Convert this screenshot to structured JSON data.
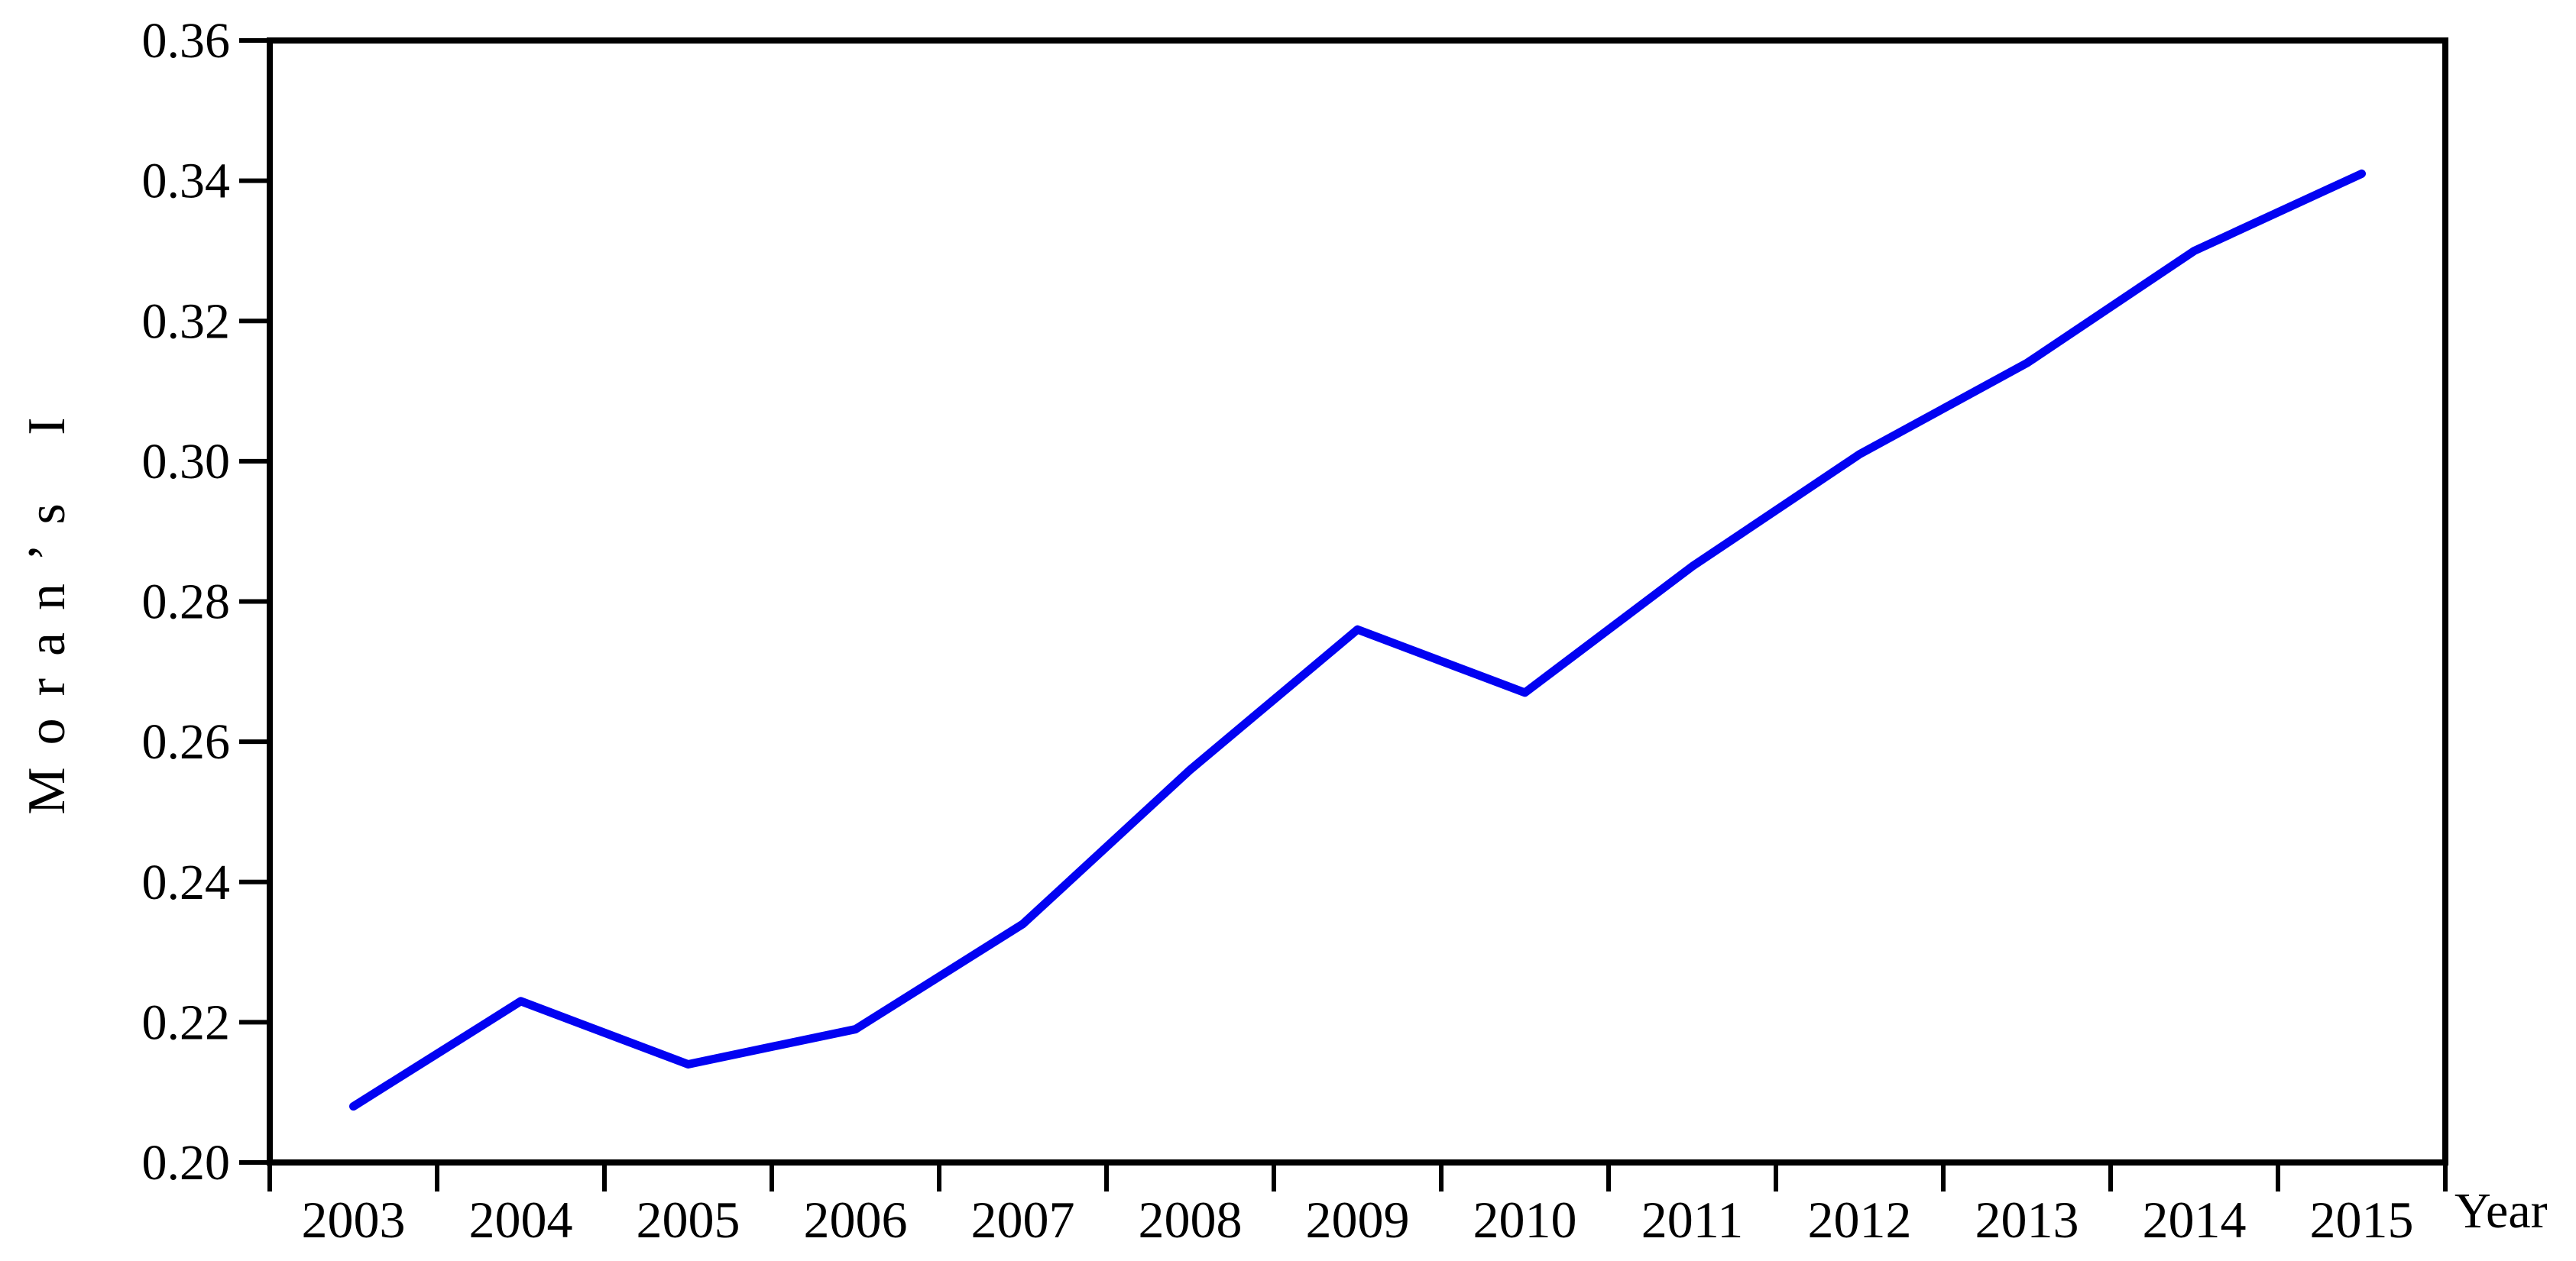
{
  "chart_data": {
    "type": "line",
    "title": "",
    "xlabel": "Year",
    "ylabel": "Moran’s I",
    "x": [
      2003,
      2004,
      2005,
      2006,
      2007,
      2008,
      2009,
      2010,
      2011,
      2012,
      2013,
      2014,
      2015
    ],
    "series": [
      {
        "name": "Moran's I",
        "color": "#0202F2",
        "values": [
          0.208,
          0.223,
          0.214,
          0.219,
          0.234,
          0.256,
          0.276,
          0.267,
          0.285,
          0.301,
          0.314,
          0.33,
          0.341
        ]
      }
    ],
    "ylim": [
      0.2,
      0.36
    ],
    "ytick_step": 0.02,
    "ytick_labels": [
      "0.20",
      "0.22",
      "0.24",
      "0.26",
      "0.28",
      "0.30",
      "0.32",
      "0.34",
      "0.36"
    ],
    "grid": false,
    "frame": true,
    "legend_position": "none",
    "axis_color": "#000000"
  }
}
